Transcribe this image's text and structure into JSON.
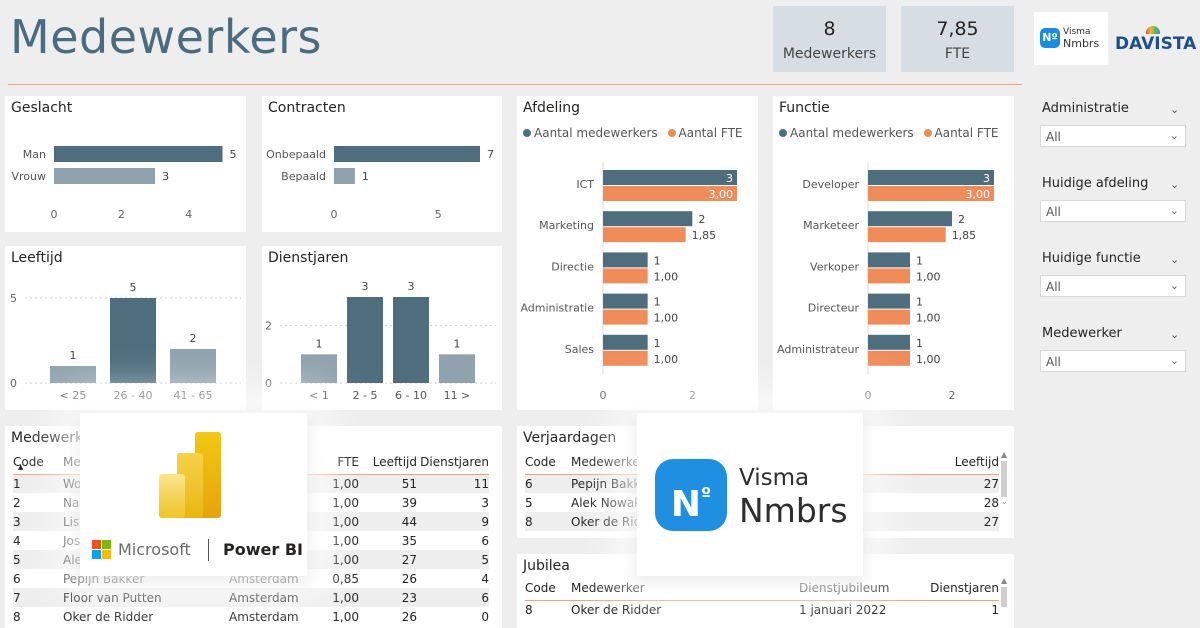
{
  "header": {
    "title": "Medewerkers",
    "kpis": [
      {
        "value": "8",
        "label": "Medewerkers"
      },
      {
        "value": "7,85",
        "label": "FTE"
      }
    ],
    "logos": {
      "visma_line1": "Visma",
      "visma_line2": "Nmbrs",
      "davista": "DAVISTA"
    }
  },
  "colors": {
    "dark_bar": "#4e6e7e",
    "light_bar": "#8fa2ad",
    "fte_bar": "#f08c5a",
    "accent": "#f0a37c",
    "title": "#4a6c80"
  },
  "geslacht": {
    "title": "Geslacht",
    "chart_data": {
      "type": "bar",
      "orientation": "horizontal",
      "categories": [
        "Man",
        "Vrouw"
      ],
      "values": [
        5,
        3
      ],
      "ticks": [
        "0",
        "2",
        "4"
      ],
      "xlim": [
        0,
        5
      ]
    }
  },
  "contracten": {
    "title": "Contracten",
    "chart_data": {
      "type": "bar",
      "orientation": "horizontal",
      "categories": [
        "Onbepaald",
        "Bepaald"
      ],
      "values": [
        7,
        1
      ],
      "ticks": [
        "0",
        "5"
      ],
      "xlim": [
        0,
        7
      ]
    }
  },
  "leeftijd": {
    "title": "Leeftijd",
    "chart_data": {
      "type": "bar",
      "categories": [
        "< 25",
        "26 - 40",
        "41 - 65"
      ],
      "values": [
        1,
        5,
        2
      ],
      "yticks": [
        "0",
        "5"
      ],
      "ylim": [
        0,
        5
      ]
    }
  },
  "dienstjaren": {
    "title": "Dienstjaren",
    "chart_data": {
      "type": "bar",
      "categories": [
        "< 1",
        "2 - 5",
        "6 - 10",
        "11 >"
      ],
      "values": [
        1,
        3,
        3,
        1
      ],
      "yticks": [
        "0",
        "2"
      ],
      "ylim": [
        0,
        3
      ]
    }
  },
  "afdeling": {
    "title": "Afdeling",
    "legend": [
      "Aantal medewerkers",
      "Aantal FTE"
    ],
    "chart_data": {
      "type": "bar",
      "orientation": "horizontal",
      "categories": [
        "ICT",
        "Marketing",
        "Directie",
        "Administratie",
        "Sales"
      ],
      "series": [
        {
          "name": "Aantal medewerkers",
          "values": [
            3,
            2,
            1,
            1,
            1
          ],
          "labels": [
            "3",
            "2",
            "1",
            "1",
            "1"
          ]
        },
        {
          "name": "Aantal FTE",
          "values": [
            3.0,
            1.85,
            1.0,
            1.0,
            1.0
          ],
          "labels": [
            "3,00",
            "1,85",
            "1,00",
            "1,00",
            "1,00"
          ]
        }
      ],
      "ticks": [
        "0",
        "2"
      ],
      "xlim": [
        0,
        3
      ]
    }
  },
  "functie": {
    "title": "Functie",
    "legend": [
      "Aantal medewerkers",
      "Aantal FTE"
    ],
    "chart_data": {
      "type": "bar",
      "orientation": "horizontal",
      "categories": [
        "Developer",
        "Marketeer",
        "Verkoper",
        "Directeur",
        "Administrateur"
      ],
      "series": [
        {
          "name": "Aantal medewerkers",
          "values": [
            3,
            2,
            1,
            1,
            1
          ],
          "labels": [
            "3",
            "2",
            "1",
            "1",
            "1"
          ]
        },
        {
          "name": "Aantal FTE",
          "values": [
            3.0,
            1.85,
            1.0,
            1.0,
            1.0
          ],
          "labels": [
            "3,00",
            "1,85",
            "1,00",
            "1,00",
            "1,00"
          ]
        }
      ],
      "ticks": [
        "0",
        "2"
      ],
      "xlim": [
        0,
        3
      ]
    }
  },
  "slicers": [
    {
      "label": "Administratie",
      "value": "All"
    },
    {
      "label": "Huidige afdeling",
      "value": "All"
    },
    {
      "label": "Huidige functie",
      "value": "All"
    },
    {
      "label": "Medewerker",
      "value": "All"
    }
  ],
  "medewerkers_table": {
    "title": "Medewerke",
    "columns": [
      "Code",
      "Me",
      "",
      "FTE",
      "Leeftijd",
      "Dienstjaren"
    ],
    "rows": [
      [
        "1",
        "Wo",
        "",
        "1,00",
        "51",
        "11"
      ],
      [
        "2",
        "Na",
        "",
        "1,00",
        "39",
        "3"
      ],
      [
        "3",
        "Lisa",
        "",
        "1,00",
        "44",
        "9"
      ],
      [
        "4",
        "Jos",
        "",
        "1,00",
        "35",
        "6"
      ],
      [
        "5",
        "Ale",
        "",
        "1,00",
        "27",
        "5"
      ],
      [
        "6",
        "Pepijn Bakker",
        "Amsterdam",
        "0,85",
        "26",
        "4"
      ],
      [
        "7",
        "Floor van Putten",
        "Amsterdam",
        "1,00",
        "23",
        "6"
      ],
      [
        "8",
        "Oker de Ridder",
        "Amsterdam",
        "1,00",
        "26",
        "0"
      ]
    ]
  },
  "verjaardagen_table": {
    "title": "Verjaardagen",
    "columns": [
      "Code",
      "Medewerker",
      "Leeftijd"
    ],
    "rows": [
      [
        "6",
        "Pepijn Bakke",
        "022",
        "27"
      ],
      [
        "5",
        "Alek Nowak",
        "",
        "28"
      ],
      [
        "8",
        "Oker de Ridd",
        "2",
        "27"
      ]
    ]
  },
  "jubilea_table": {
    "title": "Jubilea",
    "columns": [
      "Code",
      "Medewerker",
      "Dienstjubileum",
      "Dienstjaren"
    ],
    "rows": [
      [
        "8",
        "Oker de Ridder",
        "1 januari 2022",
        "1"
      ]
    ]
  },
  "overlays": {
    "powerbi": {
      "microsoft": "Microsoft",
      "product": "Power BI"
    },
    "visma": {
      "line1": "Visma",
      "line2": "Nmbrs"
    }
  }
}
